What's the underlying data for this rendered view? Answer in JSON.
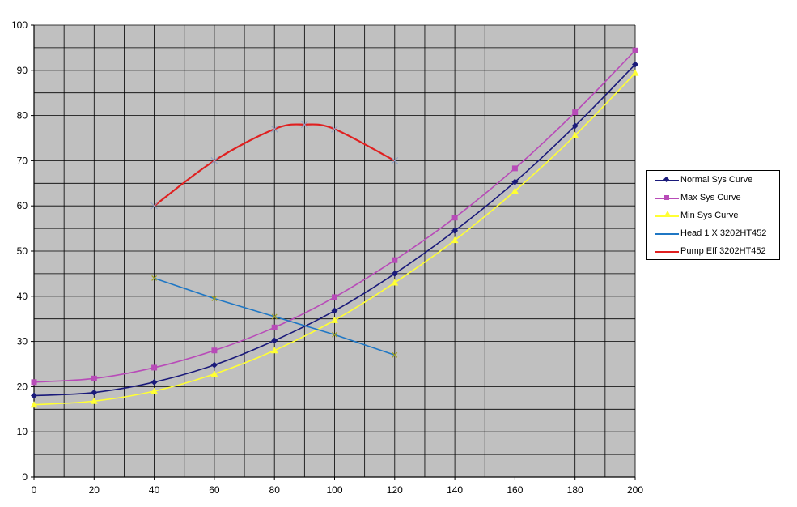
{
  "chart_data": {
    "type": "line",
    "title": "",
    "xlabel": "",
    "ylabel": "",
    "xlim": [
      0,
      200
    ],
    "ylim": [
      0,
      100
    ],
    "x_major_ticks": [
      0,
      20,
      40,
      60,
      80,
      100,
      120,
      140,
      160,
      180,
      200
    ],
    "x_grid_step": 10,
    "y_major_ticks": [
      0,
      10,
      20,
      30,
      40,
      50,
      60,
      70,
      80,
      90,
      100
    ],
    "y_grid_step": 5,
    "grid": true,
    "plot_background": "#c0c0c0",
    "legend_position": "right",
    "series": [
      {
        "name": "Normal Sys Curve",
        "color": "#1a1a7a",
        "marker": "diamond",
        "x": [
          0,
          20,
          40,
          60,
          80,
          100,
          120,
          140,
          160,
          180,
          200
        ],
        "y": [
          18.0,
          18.7,
          21.0,
          24.8,
          30.2,
          36.8,
          45.0,
          54.5,
          65.3,
          77.7,
          91.3
        ]
      },
      {
        "name": "Max Sys Curve",
        "color": "#b84bb8",
        "marker": "square",
        "x": [
          0,
          20,
          40,
          60,
          80,
          100,
          120,
          140,
          160,
          180,
          200
        ],
        "y": [
          21.0,
          21.8,
          24.2,
          28.0,
          33.1,
          39.8,
          48.0,
          57.4,
          68.3,
          80.7,
          94.4
        ]
      },
      {
        "name": "Min Sys Curve",
        "color": "#ffff33",
        "marker": "triangle",
        "x": [
          0,
          20,
          40,
          60,
          80,
          100,
          120,
          140,
          160,
          180,
          200
        ],
        "y": [
          16.0,
          16.8,
          19.0,
          22.8,
          28.0,
          34.7,
          43.0,
          52.4,
          63.3,
          75.6,
          89.4
        ]
      },
      {
        "name": "Head 1 X 3202HT452",
        "color": "#1f77c4",
        "marker": "x",
        "x": [
          40,
          60,
          80,
          100,
          120
        ],
        "y": [
          44.0,
          39.5,
          35.5,
          31.5,
          27.0
        ]
      },
      {
        "name": "Pump Eff 3202HT452",
        "color": "#e02020",
        "marker": "star",
        "x": [
          40,
          60,
          80,
          90,
          100,
          120
        ],
        "y": [
          60.0,
          70.0,
          77.0,
          78.0,
          77.0,
          70.0
        ]
      }
    ]
  }
}
